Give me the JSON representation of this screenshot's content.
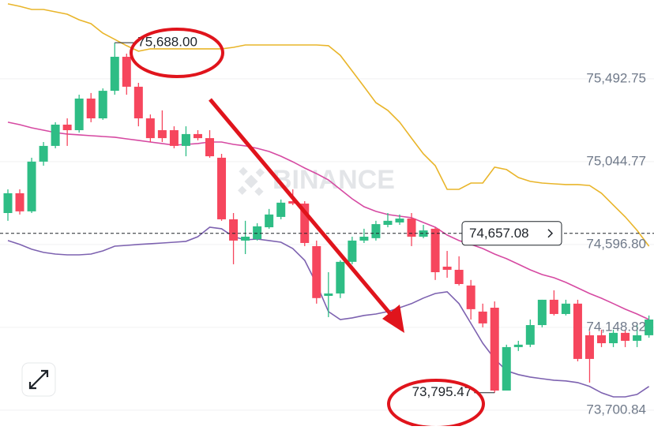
{
  "chart_data": {
    "type": "candlestick",
    "ylim": [
      73615,
      75919
    ],
    "yticks": [
      {
        "value": 75492.75,
        "label": "75,492.75"
      },
      {
        "value": 75044.77,
        "label": "75,044.77"
      },
      {
        "value": 74596.8,
        "label": "74,596.80"
      },
      {
        "value": 74148.82,
        "label": "74,148.82"
      },
      {
        "value": 73700.84,
        "label": "73,700.84"
      }
    ],
    "grid": true,
    "up_color": "#2ebd85",
    "down_color": "#f6465d",
    "open": [
      74767,
      74874,
      74776,
      75045,
      75130,
      75245,
      75215,
      75386,
      75279,
      75428,
      75612,
      75450,
      75279,
      75215,
      75215,
      75130,
      75194,
      75172,
      75066,
      74733,
      74618,
      74626,
      74690,
      74746,
      74831,
      74818,
      74588,
      74319,
      74332,
      74503,
      74618,
      74631,
      74703,
      74716,
      74737,
      74639,
      74682,
      74477,
      74460,
      74375,
      74234,
      74255,
      73807,
      74042,
      74055,
      74161,
      74298,
      74221,
      74277,
      74106,
      74106,
      74063,
      74119,
      74076,
      74106
    ],
    "high": [
      74895,
      74895,
      75066,
      75151,
      75258,
      75279,
      75407,
      75416,
      75441,
      75688.0,
      75629,
      75471,
      75300,
      75322,
      75236,
      75236,
      75215,
      75215,
      75087,
      74767,
      74725,
      74712,
      74789,
      74840,
      74895,
      74831,
      74618,
      74447,
      74511,
      74639,
      74682,
      74725,
      74767,
      74759,
      74767,
      74703,
      74690,
      74562,
      74533,
      74405,
      74277,
      74289,
      74055,
      74076,
      74191,
      74298,
      74349,
      74298,
      74298,
      74127,
      74136,
      74136,
      74136,
      74161,
      74213
    ],
    "low": [
      74725,
      74759,
      74767,
      75023,
      75117,
      75130,
      75202,
      75258,
      75271,
      75407,
      75407,
      75236,
      75151,
      75151,
      75117,
      75074,
      75160,
      75066,
      74725,
      74490,
      74545,
      74618,
      74682,
      74733,
      74810,
      74588,
      74277,
      74204,
      74307,
      74490,
      74605,
      74618,
      74690,
      74703,
      74588,
      74631,
      74405,
      74417,
      74375,
      74191,
      74149,
      73795.47,
      73810,
      74021,
      74042,
      74149,
      74213,
      74213,
      73965,
      73850,
      74042,
      74042,
      74042,
      74042,
      74093
    ],
    "close": [
      74874,
      74776,
      75045,
      75130,
      75245,
      75215,
      75386,
      75279,
      75428,
      75612,
      75450,
      75279,
      75172,
      75172,
      75130,
      75194,
      75172,
      75074,
      74733,
      74618,
      74639,
      74695,
      74759,
      74823,
      74818,
      74605,
      74307,
      74332,
      74503,
      74618,
      74639,
      74707,
      74725,
      74737,
      74639,
      74673,
      74447,
      74460,
      74383,
      74247,
      74170,
      73807,
      74042,
      74055,
      74161,
      74298,
      74221,
      74277,
      73978,
      73978,
      74063,
      74119,
      74076,
      74106,
      74191
    ],
    "series": [
      {
        "color": "#e9b52a",
        "values": [
          75898,
          75885,
          75868,
          75868,
          75855,
          75842,
          75812,
          75791,
          75740,
          75706,
          75672,
          75642,
          75655,
          75655,
          75655,
          75655,
          75655,
          75655,
          75655,
          75663,
          75676,
          75676,
          75676,
          75676,
          75676,
          75676,
          75676,
          75672,
          75620,
          75535,
          75450,
          75364,
          75322,
          75258,
          75172,
          75087,
          75023,
          74895,
          74895,
          74929,
          74929,
          75015,
          75002,
          74959,
          74938,
          74929,
          74925,
          74921,
          74921,
          74916,
          74874,
          74810,
          74746,
          74673,
          74588
        ]
      },
      {
        "color": "#d64aa2",
        "values": [
          75258,
          75245,
          75228,
          75215,
          75202,
          75194,
          75190,
          75185,
          75181,
          75177,
          75168,
          75160,
          75151,
          75143,
          75134,
          75138,
          75143,
          75151,
          75151,
          75138,
          75130,
          75117,
          75100,
          75074,
          75044,
          75010,
          74980,
          74946,
          74895,
          74844,
          74801,
          74776,
          74759,
          74750,
          74742,
          74716,
          74690,
          74648,
          74618,
          74597,
          74575,
          74545,
          74520,
          74490,
          74460,
          74434,
          74417,
          74392,
          74362,
          74332,
          74306,
          74277,
          74247,
          74221,
          74191
        ]
      },
      {
        "color": "#7d62b0",
        "values": [
          74618,
          74597,
          74571,
          74554,
          74545,
          74541,
          74541,
          74545,
          74562,
          74588,
          74592,
          74597,
          74601,
          74605,
          74609,
          74614,
          74639,
          74690,
          74682,
          74639,
          74622,
          74626,
          74618,
          74609,
          74575,
          74511,
          74383,
          74234,
          74191,
          74200,
          74213,
          74221,
          74234,
          74255,
          74277,
          74307,
          74332,
          74341,
          74277,
          74170,
          74063,
          73978,
          73914,
          73893,
          73880,
          73871,
          73863,
          73859,
          73850,
          73829,
          73795,
          73773,
          73773,
          73786,
          73829
        ]
      }
    ],
    "last_price": {
      "value": 74657.08,
      "label": "74,657.08"
    },
    "annotations": [
      {
        "value": 75688.0,
        "label": "75,688.00"
      },
      {
        "value": 73795.47,
        "label": "73,795.47"
      }
    ],
    "watermark": "BINANCE"
  }
}
